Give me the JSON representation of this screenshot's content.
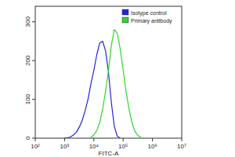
{
  "chart_data": {
    "type": "line",
    "x_label": "FITC-A",
    "log": "x",
    "legend": "top-right",
    "grid": false,
    "x": [
      1000,
      1259,
      1585,
      1995,
      2512,
      3162,
      3981,
      5012,
      6310,
      7943,
      10000,
      12589,
      15849,
      19953,
      25119,
      31623,
      39811,
      50119,
      63096,
      79433,
      100000,
      125893,
      158489,
      199526,
      251189,
      316228,
      398107,
      501187,
      630957,
      794328,
      1000000
    ],
    "series": [
      {
        "name": "Isotype control",
        "color": "#2323e6",
        "values": [
          0,
          1,
          3,
          8,
          15,
          28,
          45,
          70,
          100,
          140,
          175,
          215,
          245,
          250,
          225,
          170,
          90,
          30,
          5,
          0,
          null,
          null,
          null,
          null,
          null,
          null,
          null,
          null,
          null,
          null,
          null
        ]
      },
      {
        "name": "Primary antibody",
        "color": "#2ed62e",
        "values": [
          null,
          null,
          null,
          null,
          null,
          null,
          null,
          null,
          0,
          2,
          8,
          20,
          40,
          75,
          120,
          175,
          240,
          280,
          270,
          230,
          175,
          120,
          75,
          40,
          18,
          7,
          2,
          0,
          null,
          null,
          null
        ]
      }
    ],
    "xlim": [
      100,
      10000000
    ],
    "xticks": [
      {
        "value": 100,
        "label": "10²"
      },
      {
        "value": 1000,
        "label": "10³"
      },
      {
        "value": 10000,
        "label": "10⁴"
      },
      {
        "value": 100000,
        "label": "10⁵"
      },
      {
        "value": 1000000,
        "label": "10⁶"
      },
      {
        "value": 10000000,
        "label": "10⁷"
      }
    ],
    "ylim": [
      0,
      340
    ],
    "yticks": [
      0,
      100,
      200,
      300
    ]
  }
}
